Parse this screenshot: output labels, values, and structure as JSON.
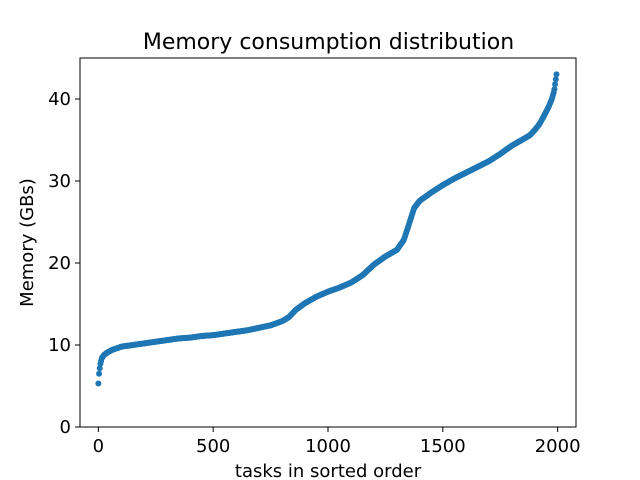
{
  "chart_data": {
    "type": "scatter",
    "title": "Memory consumption distribution",
    "xlabel": "tasks in sorted order",
    "ylabel": "Memory (GBs)",
    "xlim": [
      -80,
      2080
    ],
    "ylim": [
      0,
      45
    ],
    "xticks": [
      0,
      500,
      1000,
      1500,
      2000
    ],
    "yticks": [
      0,
      10,
      20,
      30,
      40
    ],
    "grid": false,
    "legend": "none",
    "series_color": "#1f77b4",
    "series": [
      {
        "x": [
          0,
          3,
          8,
          15,
          25,
          40,
          60,
          100,
          150,
          200,
          250,
          300,
          350,
          400,
          450,
          500,
          550,
          600,
          650,
          700,
          750,
          800,
          830,
          860,
          880,
          900,
          950,
          1000,
          1050,
          1100,
          1150,
          1200,
          1250,
          1300,
          1330,
          1350,
          1375,
          1400,
          1450,
          1500,
          1550,
          1600,
          1650,
          1700,
          1750,
          1800,
          1850,
          1880,
          1900,
          1920,
          1940,
          1960,
          1975,
          1985,
          1990,
          1995
        ],
        "y": [
          5.3,
          6.5,
          7.6,
          8.4,
          8.8,
          9.1,
          9.4,
          9.8,
          10.0,
          10.2,
          10.4,
          10.6,
          10.8,
          10.9,
          11.1,
          11.2,
          11.4,
          11.6,
          11.8,
          12.1,
          12.4,
          12.9,
          13.4,
          14.3,
          14.7,
          15.1,
          15.9,
          16.5,
          17.0,
          17.6,
          18.5,
          19.8,
          20.8,
          21.6,
          22.8,
          24.5,
          26.7,
          27.6,
          28.6,
          29.5,
          30.3,
          31.0,
          31.7,
          32.4,
          33.3,
          34.3,
          35.1,
          35.6,
          36.2,
          36.9,
          37.9,
          39.0,
          40.0,
          41.0,
          42.0,
          43.0
        ]
      }
    ]
  }
}
